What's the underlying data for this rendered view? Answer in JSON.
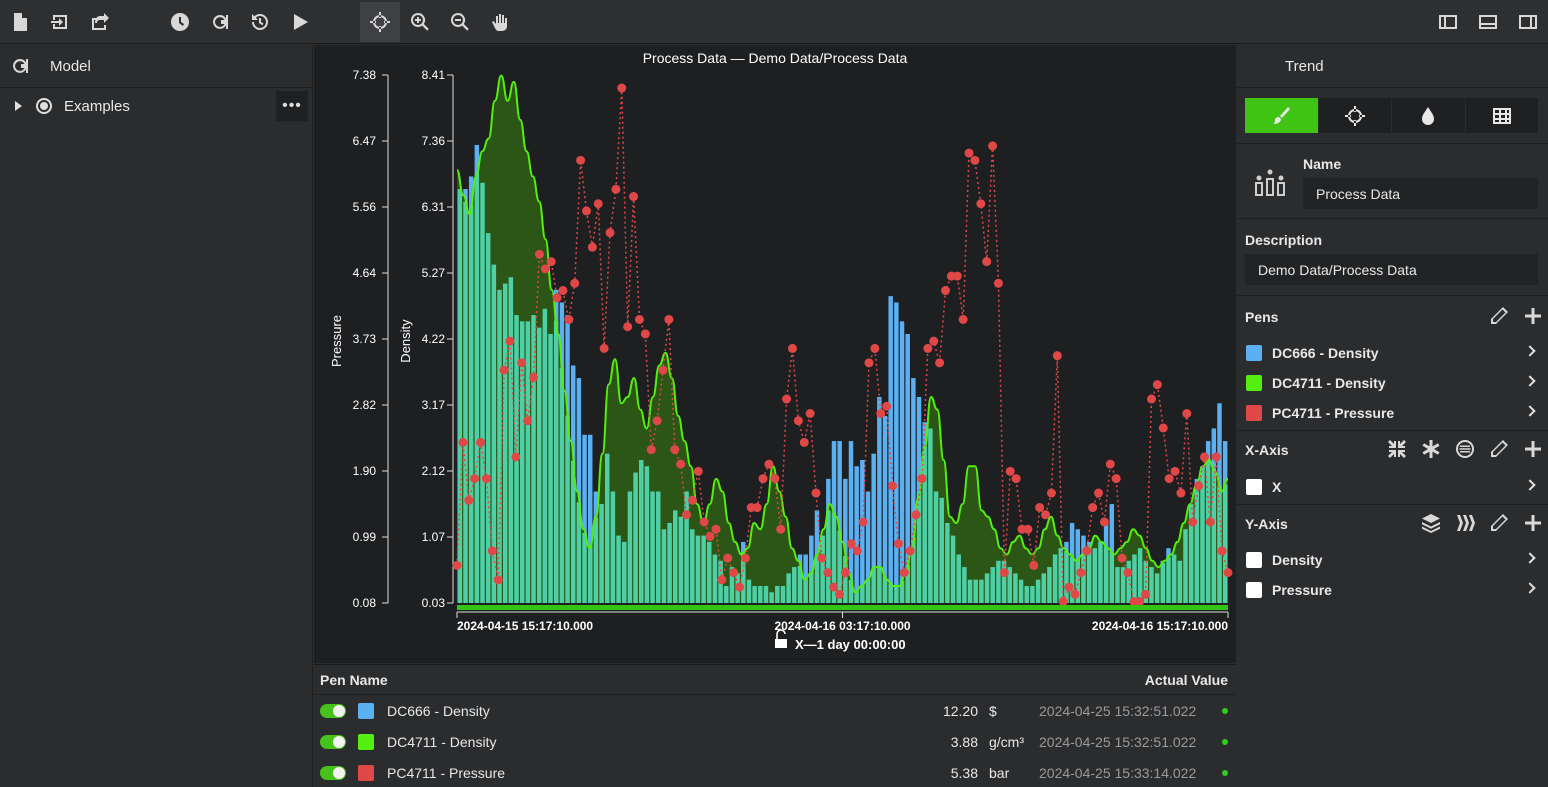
{
  "toolbar": {
    "icons": [
      "new-file-icon",
      "import-icon",
      "export-icon",
      "history-icon",
      "refresh-icon",
      "reload-icon",
      "play-icon",
      "crosshair-icon",
      "zoom-in-icon",
      "zoom-out-icon",
      "pan-hand-icon",
      "layout-left-icon",
      "layout-bottom-icon",
      "layout-right-icon"
    ]
  },
  "left_panel": {
    "title": "Model",
    "tree": [
      {
        "label": "Examples",
        "more": "•••"
      }
    ]
  },
  "chart": {
    "title": "Process Data — Demo Data/Process Data",
    "x_range_label": "X—1 day 00:00:00",
    "colors": {
      "dc666": "#5ab0f0",
      "dc4711": "#55ee10",
      "pressure": "#e04848",
      "overlap": "#4fcfa5",
      "area": "#2c5a16"
    }
  },
  "chart_data": {
    "type": "bar",
    "xlabel": "",
    "x_ticks": [
      "2024-04-15 15:17:10.000",
      "2024-04-16 03:17:10.000",
      "2024-04-16 15:17:10.000"
    ],
    "y_axes": [
      {
        "label": "Pressure",
        "ticks": [
          "7.38",
          "6.47",
          "5.56",
          "4.64",
          "3.73",
          "2.82",
          "1.90",
          "0.99",
          "0.08"
        ],
        "ylim": [
          0.08,
          7.38
        ]
      },
      {
        "label": "Density",
        "ticks": [
          "8.41",
          "7.36",
          "6.31",
          "5.27",
          "4.22",
          "3.17",
          "2.12",
          "1.07",
          "0.03"
        ],
        "ylim": [
          0.03,
          8.41
        ]
      }
    ],
    "series": [
      {
        "name": "DC666 - Density",
        "kind": "bar",
        "axis": "Density",
        "values": [
          6.6,
          6.6,
          6.8,
          7.3,
          6.7,
          5.9,
          5.4,
          5.0,
          5.1,
          5.2,
          4.6,
          4.5,
          4.5,
          4.6,
          4.4,
          4.7,
          4.3,
          5.0,
          4.8,
          4.6,
          3.8,
          3.6,
          2.7,
          2.7,
          1.8,
          1.6,
          2.4,
          1.8,
          1.1,
          1.0,
          1.8,
          2.1,
          2.3,
          2.2,
          1.8,
          1.8,
          1.2,
          1.3,
          1.5,
          1.4,
          1.8,
          1.2,
          1.1,
          1.1,
          1.0,
          0.8,
          0.7,
          0.3,
          0.6,
          0.5,
          1.0,
          0.4,
          0.3,
          0.3,
          0.3,
          0.2,
          0.3,
          0.3,
          0.5,
          0.6,
          0.8,
          0.8,
          1.1,
          1.5,
          1.1,
          2.0,
          2.6,
          2.6,
          2.0,
          2.6,
          2.2,
          2.3,
          1.8,
          2.4,
          3.3,
          3.0,
          4.9,
          4.8,
          4.5,
          4.3,
          3.6,
          3.3,
          2.9,
          2.8,
          1.8,
          1.7,
          1.3,
          1.1,
          0.8,
          0.6,
          0.4,
          0.4,
          0.4,
          0.5,
          0.6,
          0.7,
          0.7,
          0.6,
          0.5,
          0.4,
          0.3,
          0.3,
          0.4,
          0.5,
          0.6,
          0.8,
          0.9,
          1.0,
          1.3,
          1.2,
          1.1,
          1.0,
          0.9,
          1.0,
          1.3,
          1.6,
          0.6,
          0.6,
          0.7,
          0.8,
          0.9,
          0.7,
          0.6,
          0.5,
          0.7,
          0.9,
          0.8,
          0.7,
          1.2,
          1.6,
          2.0,
          2.2,
          2.6,
          2.8,
          3.2,
          2.6
        ]
      },
      {
        "name": "DC4711 - Density",
        "kind": "area",
        "axis": "Density",
        "values": [
          6.9,
          6.5,
          6.2,
          6.8,
          7.2,
          7.4,
          8.0,
          8.4,
          8.0,
          8.3,
          7.7,
          7.2,
          6.8,
          6.4,
          5.8,
          5.0,
          4.3,
          3.4,
          2.6,
          1.8,
          1.2,
          0.9,
          1.4,
          2.4,
          3.5,
          3.9,
          3.2,
          3.3,
          3.6,
          3.1,
          2.8,
          3.3,
          3.8,
          4.0,
          3.6,
          3.0,
          2.6,
          2.2,
          1.6,
          1.3,
          1.6,
          2.0,
          1.8,
          1.3,
          1.0,
          0.8,
          0.9,
          1.3,
          1.2,
          1.6,
          2.2,
          1.8,
          1.4,
          0.9,
          0.7,
          0.4,
          0.5,
          0.8,
          1.2,
          1.6,
          1.4,
          1.0,
          0.5,
          0.2,
          0.3,
          0.4,
          0.6,
          0.6,
          0.4,
          0.3,
          0.3,
          0.5,
          0.9,
          1.7,
          2.5,
          3.3,
          3.1,
          2.3,
          1.4,
          1.3,
          1.6,
          2.2,
          2.2,
          1.5,
          1.4,
          1.2,
          0.9,
          0.8,
          1.0,
          1.1,
          0.9,
          0.8,
          0.9,
          1.2,
          1.4,
          1.1,
          0.9,
          0.8,
          0.7,
          0.8,
          0.9,
          1.1,
          1.0,
          0.9,
          0.8,
          0.9,
          1.0,
          1.2,
          1.1,
          0.9,
          0.7,
          0.6,
          0.7,
          0.8,
          1.0,
          1.3,
          1.6,
          1.9,
          2.2,
          2.3,
          2.1,
          1.8,
          2.0
        ]
      },
      {
        "name": "PC4711 - Pressure",
        "kind": "line",
        "axis": "Pressure",
        "values": [
          0.6,
          2.3,
          1.5,
          1.8,
          2.3,
          1.8,
          0.8,
          0.4,
          3.3,
          3.7,
          2.1,
          3.4,
          2.6,
          3.2,
          4.9,
          4.7,
          4.8,
          4.3,
          4.4,
          4.0,
          4.5,
          6.2,
          5.5,
          5.0,
          5.6,
          3.6,
          5.2,
          5.8,
          7.2,
          3.9,
          5.7,
          4.0,
          3.8,
          2.2,
          2.6,
          3.3,
          4.0,
          2.2,
          2.0,
          1.3,
          1.5,
          1.9,
          1.2,
          1.0,
          1.1,
          0.4,
          0.7,
          0.5,
          0.3,
          0.7,
          1.4,
          1.4,
          1.8,
          2.0,
          1.8,
          1.1,
          2.9,
          3.6,
          2.6,
          2.3,
          2.7,
          1.6,
          0.7,
          0.5,
          0.3,
          0.2,
          0.5,
          0.9,
          0.8,
          1.2,
          3.4,
          3.6,
          2.7,
          2.8,
          1.7,
          0.9,
          0.5,
          0.8,
          1.3,
          1.8,
          3.6,
          3.7,
          3.4,
          4.4,
          4.6,
          4.6,
          4.0,
          6.3,
          6.2,
          5.6,
          4.8,
          6.4,
          4.5,
          0.5,
          1.9,
          1.8,
          1.1,
          1.1,
          0.6,
          1.4,
          1.3,
          1.6,
          3.5,
          0.1,
          0.3,
          0.2,
          0.5,
          0.8,
          1.4,
          1.6,
          1.2,
          2.0,
          1.8,
          0.7,
          0.5,
          0.1,
          0.1,
          0.2,
          2.9,
          3.1,
          2.5,
          1.8,
          1.9,
          1.6,
          2.7,
          1.2,
          1.7,
          2.1,
          1.2,
          2.1,
          0.8,
          0.5
        ]
      }
    ]
  },
  "pen_table": {
    "col_name": "Pen Name",
    "col_value": "Actual Value",
    "rows": [
      {
        "name": "DC666 - Density",
        "color": "#5ab0f0",
        "value": "12.20",
        "unit": "$",
        "time": "2024-04-25 15:32:51.022"
      },
      {
        "name": "DC4711 - Density",
        "color": "#55ee10",
        "value": "3.88",
        "unit": "g/cm³",
        "time": "2024-04-25 15:32:51.022"
      },
      {
        "name": "PC4711 - Pressure",
        "color": "#e04848",
        "value": "5.38",
        "unit": "bar",
        "time": "2024-04-25 15:33:14.022"
      }
    ]
  },
  "right_panel": {
    "title": "Trend",
    "tabs": [
      "brush-icon",
      "crosshair-icon",
      "droplet-icon",
      "table-icon"
    ],
    "name_label": "Name",
    "name_value": "Process Data",
    "desc_label": "Description",
    "desc_value": "Demo Data/Process Data",
    "pens_label": "Pens",
    "pens": [
      {
        "name": "DC666 - Density",
        "color": "#5ab0f0"
      },
      {
        "name": "DC4711 - Density",
        "color": "#55ee10"
      },
      {
        "name": "PC4711 - Pressure",
        "color": "#e04848"
      }
    ],
    "xaxis_label": "X-Axis",
    "xaxes": [
      {
        "name": "X"
      }
    ],
    "yaxis_label": "Y-Axis",
    "yaxes": [
      {
        "name": "Density"
      },
      {
        "name": "Pressure"
      }
    ]
  }
}
